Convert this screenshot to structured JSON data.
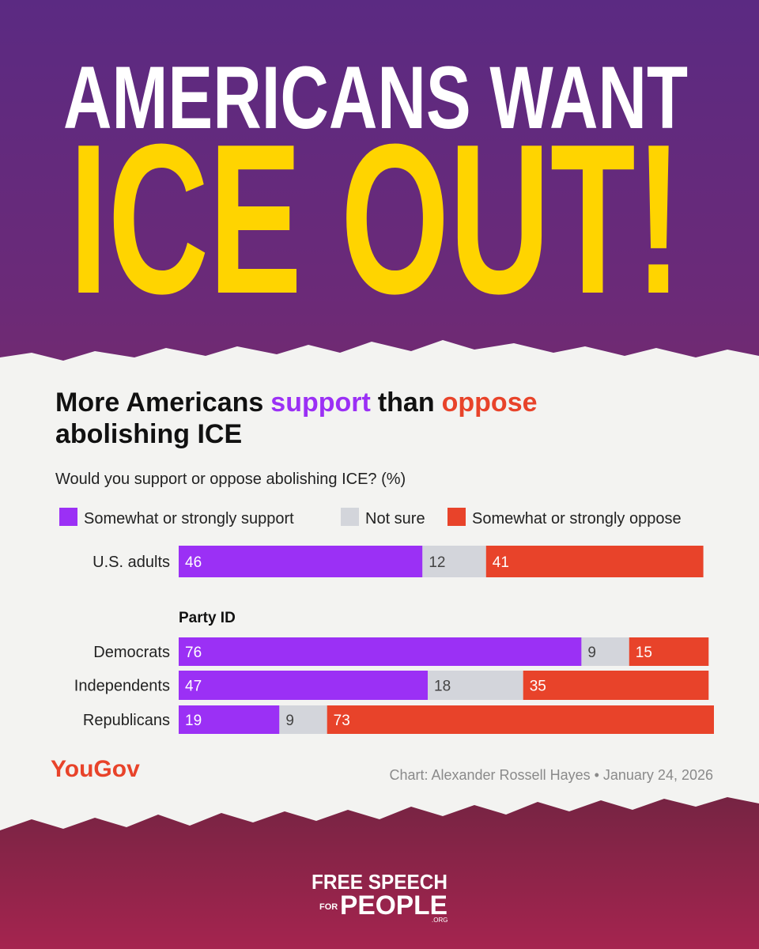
{
  "header": {
    "line1": "AMERICANS WANT",
    "line2": "ICE OUT!"
  },
  "chart_data": {
    "type": "stacked-bar",
    "orientation": "horizontal",
    "title_parts": [
      {
        "text": "More Americans"
      },
      {
        "text": "support",
        "color": "#9b30f5"
      },
      {
        "text": "than"
      },
      {
        "text": "oppose",
        "color": "#e8432a"
      },
      {
        "text": "abolishing ICE",
        "newline": true
      }
    ],
    "subtitle": "Would you support or oppose abolishing ICE? (%)",
    "categories": [
      "U.S. adults",
      "Democrats",
      "Independents",
      "Republicans"
    ],
    "group_label": "Party ID",
    "series": [
      {
        "name": "Somewhat or strongly support",
        "color": "#9b30f5",
        "label_color": "#ffffff",
        "values": [
          46,
          76,
          47,
          19
        ]
      },
      {
        "name": "Not sure",
        "color": "#d3d5db",
        "label_color": "#444444",
        "values": [
          12,
          9,
          18,
          9
        ]
      },
      {
        "name": "Somewhat or strongly oppose",
        "color": "#e8432a",
        "label_color": "#ffffff",
        "values": [
          41,
          15,
          35,
          73
        ]
      }
    ],
    "source_logo": "YouGov",
    "credit": "Chart: Alexander Rossell Hayes • January 24, 2026"
  },
  "footer": {
    "line1": "FREE SPEECH",
    "line2a": "FOR",
    "line2b": "PEOPLE",
    "line3": ".ORG"
  }
}
